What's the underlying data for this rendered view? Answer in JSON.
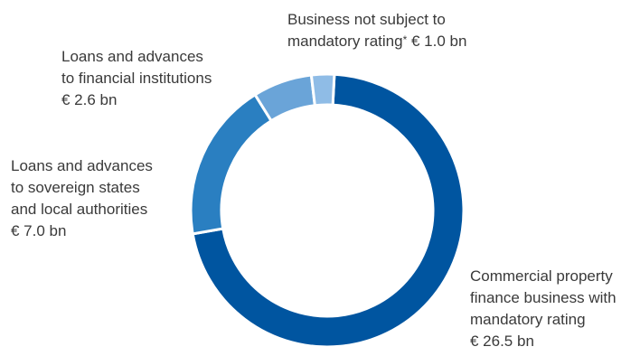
{
  "chart_data": {
    "type": "pie",
    "donut": true,
    "categories": [
      "Commercial property finance business with mandatory rating",
      "Loans and advances to sovereign states and local authorities",
      "Loans and advances to financial institutions",
      "Business not subject to mandatory rating*"
    ],
    "values": [
      26.5,
      7.0,
      2.6,
      1.0
    ],
    "unit": "€ bn",
    "colors": [
      "#0055a0",
      "#2a7fc1",
      "#6aa4d8",
      "#8fbce6"
    ],
    "labels": [
      {
        "lines": [
          "Commercial property",
          "finance business with",
          "mandatory rating",
          "€ 26.5 bn"
        ]
      },
      {
        "lines": [
          "Loans and advances",
          "to sovereign states",
          "and local authorities",
          "€ 7.0 bn"
        ]
      },
      {
        "lines": [
          "Loans and advances",
          "to financial institutions",
          "€ 2.6 bn"
        ]
      },
      {
        "lines": [
          "Business not subject to",
          "mandatory rating",
          "€ 1.0 bn"
        ],
        "footnote_mark": "*"
      }
    ]
  }
}
